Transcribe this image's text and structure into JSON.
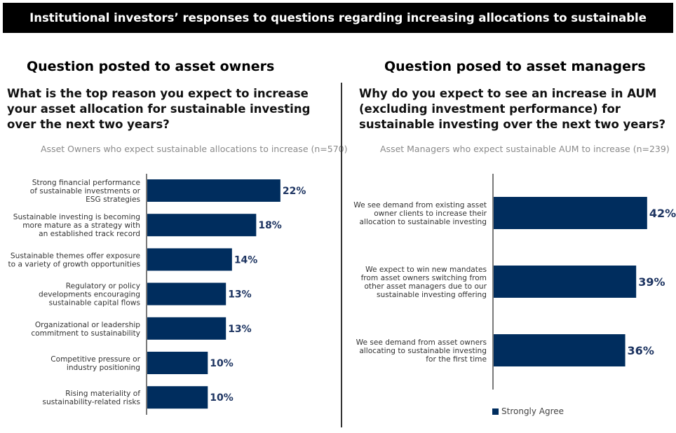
{
  "banner": "Institutional investors’ responses to questions regarding increasing allocations to sustainable",
  "colors": {
    "bar": "#002d5e",
    "value_label": "#1d3461"
  },
  "chart_data": [
    {
      "type": "bar",
      "orientation": "horizontal",
      "heading": "Question posted to asset owners",
      "title": "What is the top reason you expect to increase your asset allocation for sustainable investing over the next two years?",
      "subtitle": "Asset Owners who expect sustainable allocations to increase (n=570)",
      "categories": [
        "Strong financial performance|of sustainable investments or|ESG strategies",
        "Sustainable investing is becoming|more mature as a strategy with|an established track record",
        "Sustainable themes offer exposure|to a variety of growth opportunities",
        "Regulatory or policy|developments encouraging|sustainable capital flows",
        "Organizational or leadership|commitment to sustainability",
        "Competitive pressure or|industry positioning",
        "Rising materiality of|sustainability-related risks"
      ],
      "values": [
        22,
        18,
        14,
        13,
        13,
        10,
        10
      ],
      "value_labels": [
        "22%",
        "18%",
        "14%",
        "13%",
        "13%",
        "10%",
        "10%"
      ],
      "unit": "%",
      "grid": false
    },
    {
      "type": "bar",
      "orientation": "horizontal",
      "heading": "Question posed to asset managers",
      "title": "Why do you expect to see an increase in AUM (excluding investment performance) for sustainable investing over the next two years?",
      "subtitle": "Asset Managers who expect sustainable AUM to increase (n=239)",
      "categories": [
        "We see demand from existing asset|owner clients to increase their|allocation to sustainable investing",
        "We expect to win new mandates|from asset owners switching from|other asset managers due to our|sustainable investing offering",
        "We see demand from asset owners|allocating to sustainable investing|for the first time"
      ],
      "series": [
        {
          "name": "Strongly Agree",
          "values": [
            42,
            39,
            36
          ]
        }
      ],
      "value_labels": [
        "42%",
        "39%",
        "36%"
      ],
      "legend": {
        "entries": [
          "Strongly Agree"
        ],
        "placement": "bottom"
      },
      "unit": "%",
      "grid": false
    }
  ]
}
